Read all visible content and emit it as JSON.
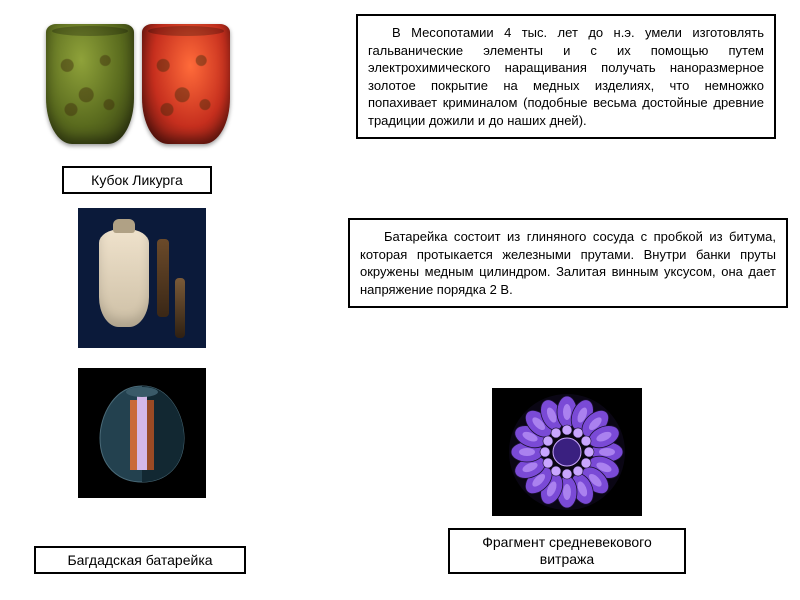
{
  "captions": {
    "cup": "Кубок Ликурга",
    "battery": "Багдадская батарейка",
    "rose": "Фрагмент средневекового витража"
  },
  "panels": {
    "mesopotamia": "В Месопотамии 4 тыс. лет до н.э. умели изготовлять гальванические элементы и с их помощью путем электрохимического наращивания получать наноразмерное золотое покрытие на медных изделиях, что немножко попахивает криминалом (подобные весьма достойные древние традиции дожили и до наших дней).",
    "battery": "Батарейка состоит из глиняного сосуда с пробкой из битума, которая протыкается железными прутами. Внутри банки пруты окружены медным цилиндром. Залитая винным уксусом, она дает напряжение порядка 2 В."
  },
  "styling": {
    "border_color": "#000000",
    "background": "#ffffff",
    "font_family": "Arial",
    "caption_fontsize": 14,
    "panel_fontsize": 13,
    "cup_colors": {
      "green": "#5a6b1e",
      "red": "#c62f1e"
    },
    "battery_bg": "#0b1a3a",
    "jar_color": "#efe2cc",
    "cutaway": {
      "shell": "#2a4a5a",
      "copper": "#c96a3a",
      "rod": "#d4b8e8",
      "bg": "#000000"
    },
    "rose_window": {
      "bg": "#000000",
      "petal_color": "#7a4ad6",
      "petal_highlight": "#c9a6ff",
      "center": "#3a2080",
      "outline": "#1a1030",
      "petal_count": 16,
      "inner_count": 12
    }
  }
}
